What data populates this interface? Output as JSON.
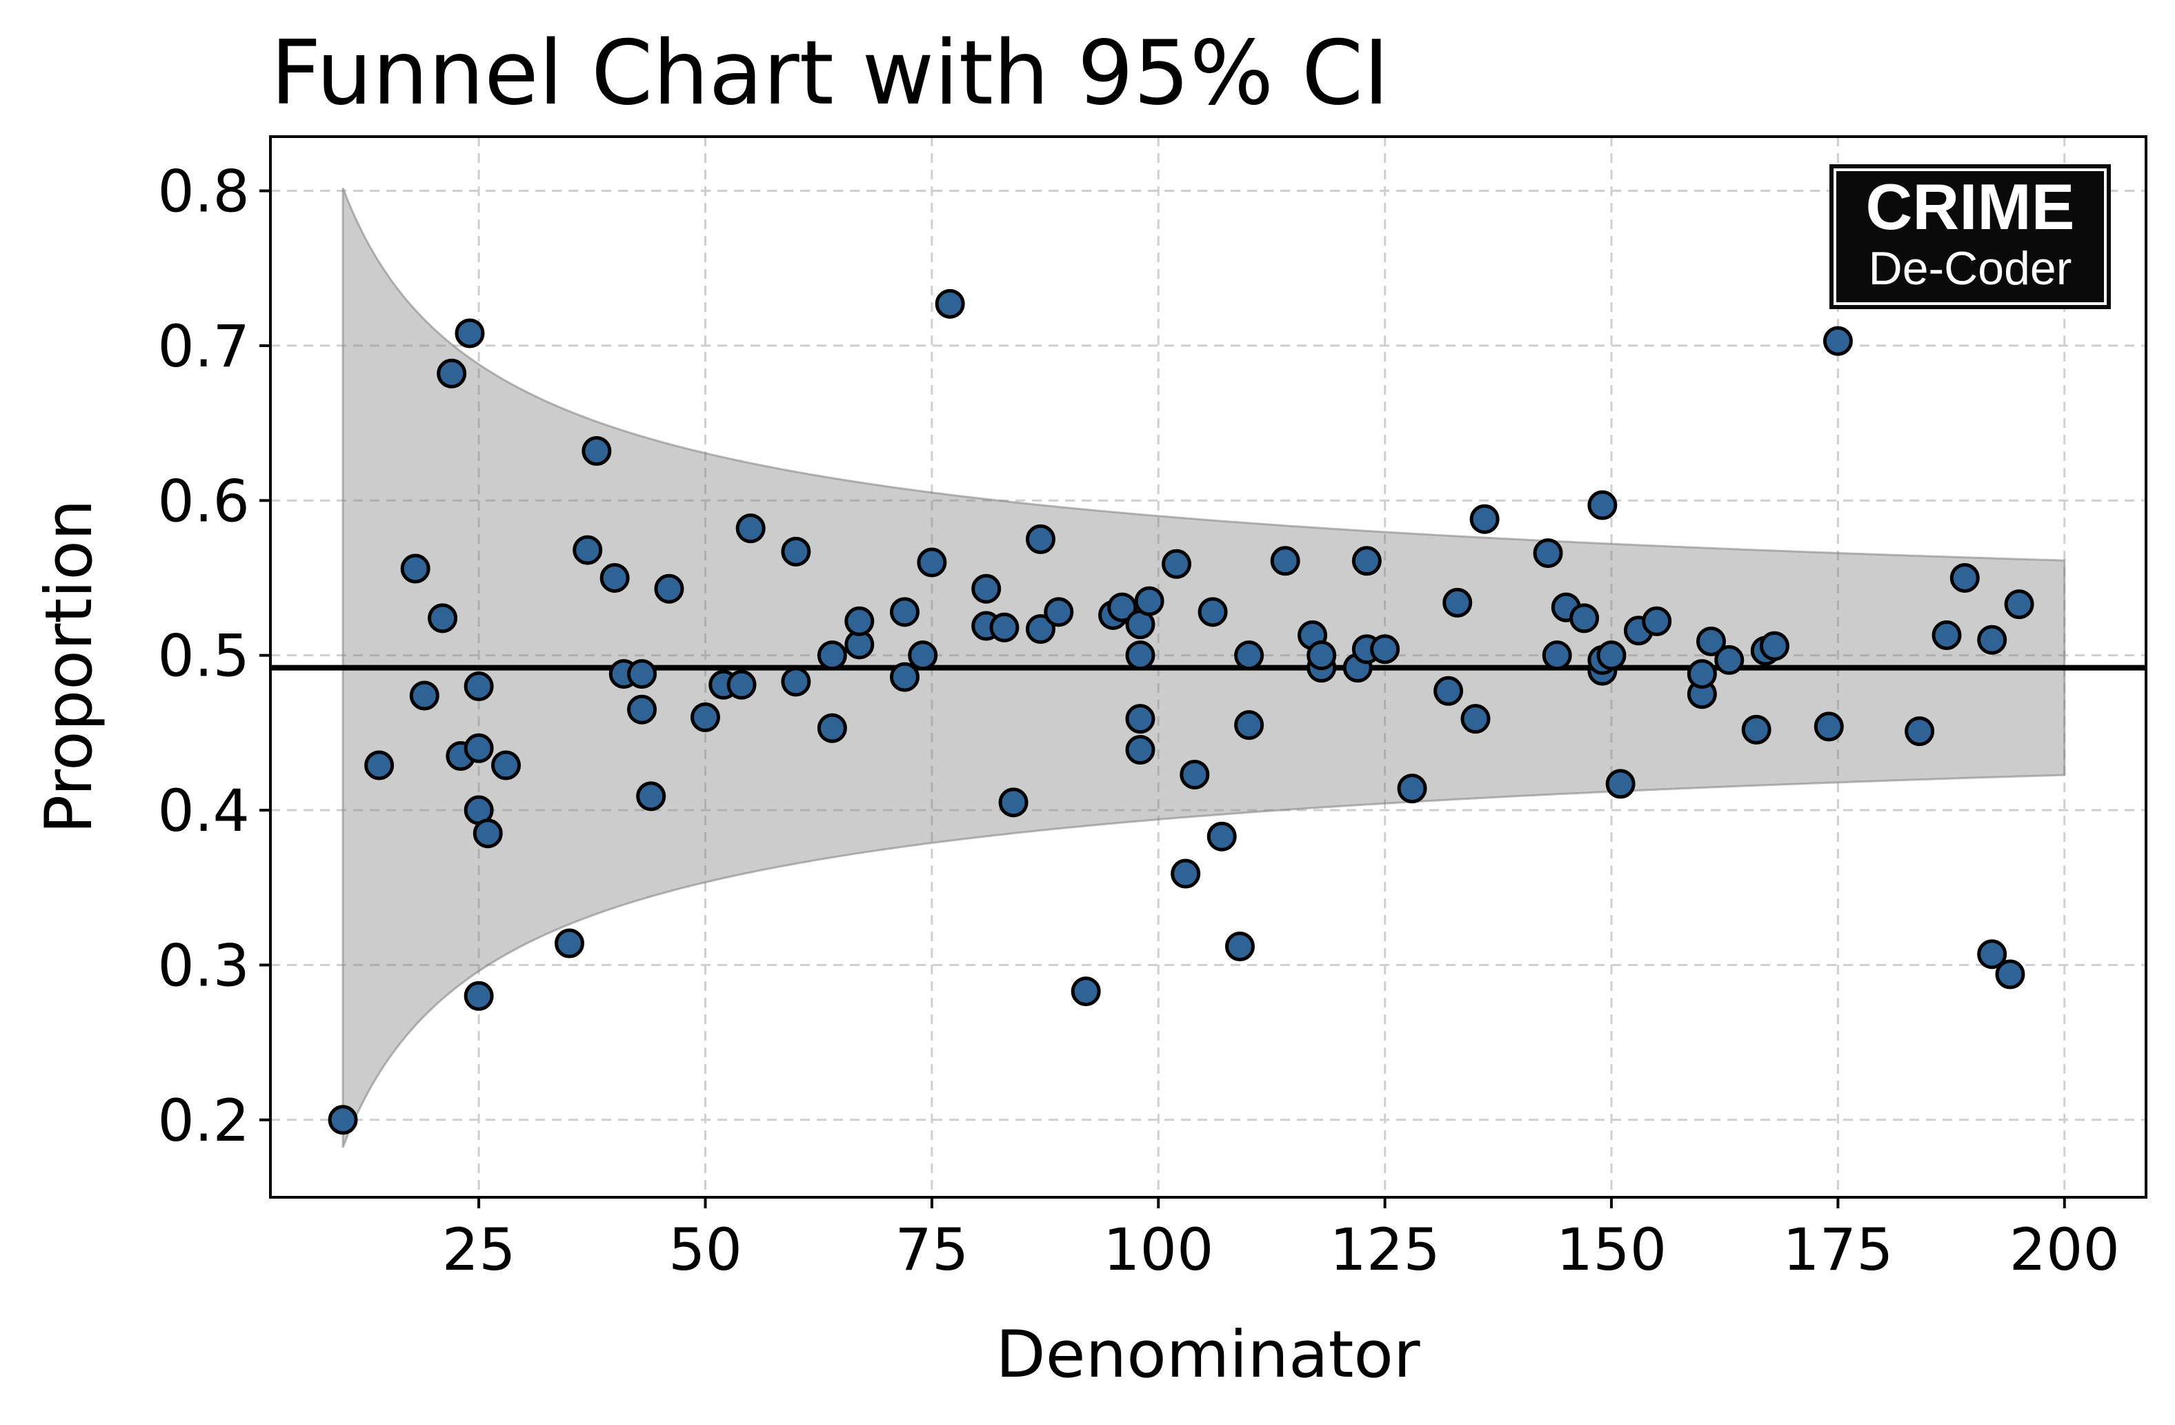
{
  "chart_data": {
    "type": "scatter",
    "title": "Funnel Chart with 95% CI",
    "xlabel": "Denominator",
    "ylabel": "Proportion",
    "xlim": [
      2,
      209
    ],
    "ylim": [
      0.15,
      0.835
    ],
    "grid": true,
    "x_ticks": [
      25,
      50,
      75,
      100,
      125,
      150,
      175,
      200
    ],
    "y_ticks": [
      0.2,
      0.3,
      0.4,
      0.5,
      0.6,
      0.7,
      0.8
    ],
    "x_tick_labels": [
      "25",
      "50",
      "75",
      "100",
      "125",
      "150",
      "175",
      "200"
    ],
    "y_tick_labels": [
      "0.2",
      "0.3",
      "0.4",
      "0.5",
      "0.6",
      "0.7",
      "0.8"
    ],
    "reference_line": {
      "y": 0.492,
      "color": "#000000"
    },
    "confidence_band": {
      "level": "95%",
      "p": 0.492,
      "z": 1.96,
      "x_from": 10,
      "x_to": 200,
      "color": "#808080"
    },
    "points": {
      "color": "#2f6396",
      "edge_color": "#000000",
      "x": [
        10,
        14,
        18,
        19,
        21,
        22,
        23,
        24,
        25,
        25,
        25,
        25,
        26,
        28,
        35,
        37,
        38,
        40,
        41,
        43,
        43,
        44,
        46,
        50,
        52,
        54,
        55,
        60,
        60,
        64,
        64,
        67,
        67,
        72,
        72,
        74,
        75,
        77,
        81,
        81,
        83,
        84,
        87,
        87,
        89,
        92,
        95,
        96,
        98,
        98,
        98,
        98,
        99,
        102,
        103,
        104,
        106,
        107,
        109,
        110,
        110,
        114,
        117,
        118,
        118,
        122,
        123,
        123,
        125,
        128,
        132,
        133,
        135,
        136,
        143,
        144,
        145,
        147,
        149,
        149,
        149,
        150,
        151,
        153,
        155,
        160,
        160,
        161,
        163,
        166,
        167,
        168,
        174,
        175,
        184,
        187,
        189,
        192,
        192,
        194,
        195
      ],
      "y": [
        0.2,
        0.429,
        0.556,
        0.474,
        0.524,
        0.682,
        0.435,
        0.708,
        0.48,
        0.44,
        0.4,
        0.28,
        0.385,
        0.429,
        0.314,
        0.568,
        0.632,
        0.55,
        0.488,
        0.465,
        0.488,
        0.409,
        0.543,
        0.46,
        0.481,
        0.481,
        0.582,
        0.567,
        0.483,
        0.5,
        0.453,
        0.507,
        0.522,
        0.528,
        0.486,
        0.5,
        0.56,
        0.727,
        0.543,
        0.519,
        0.518,
        0.405,
        0.575,
        0.517,
        0.528,
        0.283,
        0.526,
        0.531,
        0.52,
        0.5,
        0.459,
        0.439,
        0.535,
        0.559,
        0.359,
        0.423,
        0.528,
        0.383,
        0.312,
        0.5,
        0.455,
        0.561,
        0.513,
        0.492,
        0.5,
        0.492,
        0.561,
        0.504,
        0.504,
        0.414,
        0.477,
        0.534,
        0.459,
        0.588,
        0.566,
        0.5,
        0.531,
        0.524,
        0.597,
        0.49,
        0.497,
        0.5,
        0.417,
        0.516,
        0.522,
        0.475,
        0.488,
        0.509,
        0.497,
        0.452,
        0.503,
        0.506,
        0.454,
        0.703,
        0.451,
        0.513,
        0.55,
        0.307,
        0.51,
        0.294,
        0.533
      ]
    }
  },
  "logo": {
    "line1": "CRIME",
    "line2": "De-Coder"
  }
}
